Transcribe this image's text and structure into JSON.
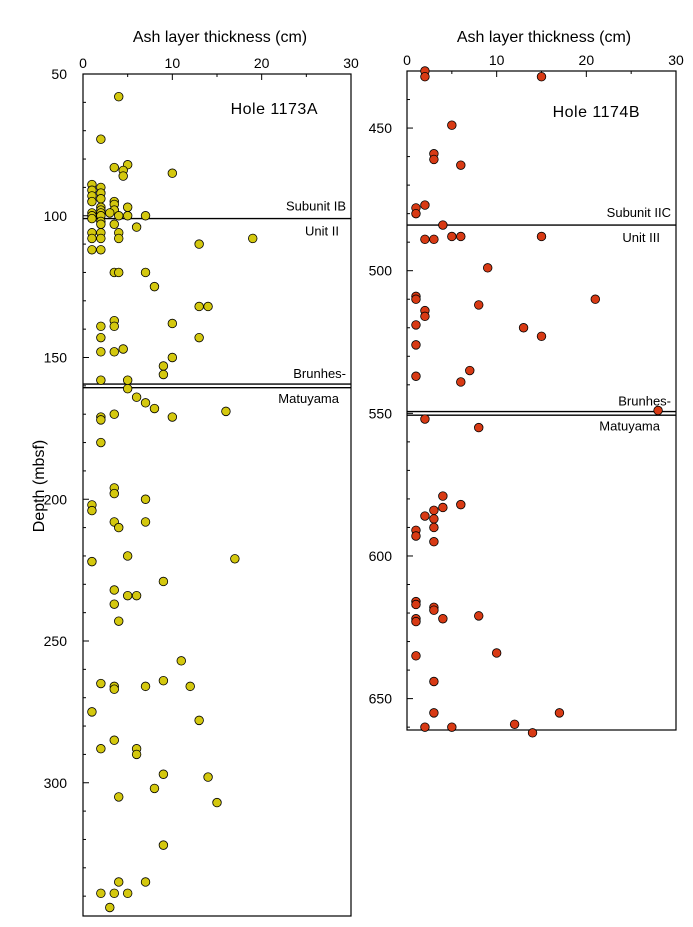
{
  "chart_data": [
    {
      "type": "scatter",
      "xlabel": "Ash layer thickness (cm)",
      "ylabel": "Depth (mbsf)",
      "xlim": [
        0,
        30
      ],
      "ylim": [
        50,
        347
      ],
      "y_inverted": true,
      "x_axis_position": "top",
      "xticks": [
        "0",
        "10",
        "20",
        "30"
      ],
      "yticks": [
        "50",
        "100",
        "150",
        "200",
        "250",
        "300"
      ],
      "ytick_values": [
        50,
        100,
        150,
        200,
        250,
        300
      ],
      "panel_label": "Hole 1173A",
      "marker_color": "#d4c80e",
      "boundaries": [
        {
          "depth": 101,
          "label_above": "Subunit IB",
          "label_below": "Unit II",
          "double": false
        },
        {
          "depth": 160,
          "label_above": "Brunhes-",
          "label_below": "Matuyama",
          "double": true
        }
      ],
      "points": [
        [
          4,
          58
        ],
        [
          2,
          73
        ],
        [
          3.5,
          83
        ],
        [
          5,
          82
        ],
        [
          4.5,
          84
        ],
        [
          4.5,
          86
        ],
        [
          10,
          85
        ],
        [
          1,
          89
        ],
        [
          2,
          90
        ],
        [
          1,
          91
        ],
        [
          2,
          92
        ],
        [
          1,
          93
        ],
        [
          2,
          94
        ],
        [
          1,
          95
        ],
        [
          3.5,
          95
        ],
        [
          3.5,
          96
        ],
        [
          2,
          97
        ],
        [
          5,
          97
        ],
        [
          2,
          98
        ],
        [
          3.5,
          98
        ],
        [
          1,
          99
        ],
        [
          2,
          99
        ],
        [
          3,
          99
        ],
        [
          1,
          100
        ],
        [
          2,
          100
        ],
        [
          4,
          100
        ],
        [
          5,
          100
        ],
        [
          7,
          100
        ],
        [
          1,
          101
        ],
        [
          2,
          102
        ],
        [
          2,
          103
        ],
        [
          3.5,
          103
        ],
        [
          6,
          104
        ],
        [
          1,
          106
        ],
        [
          2,
          106
        ],
        [
          4,
          106
        ],
        [
          2,
          108
        ],
        [
          4,
          108
        ],
        [
          1,
          108
        ],
        [
          19,
          108
        ],
        [
          13,
          110
        ],
        [
          1,
          112
        ],
        [
          2,
          112
        ],
        [
          3.5,
          120
        ],
        [
          4,
          120
        ],
        [
          7,
          120
        ],
        [
          8,
          125
        ],
        [
          13,
          132
        ],
        [
          14,
          132
        ],
        [
          3.5,
          137
        ],
        [
          10,
          138
        ],
        [
          2,
          139
        ],
        [
          3.5,
          139
        ],
        [
          2,
          143
        ],
        [
          13,
          143
        ],
        [
          3.5,
          148
        ],
        [
          4.5,
          147
        ],
        [
          2,
          148
        ],
        [
          10,
          150
        ],
        [
          9,
          153
        ],
        [
          9,
          156
        ],
        [
          5,
          158
        ],
        [
          2,
          158
        ],
        [
          5,
          161
        ],
        [
          6,
          164
        ],
        [
          7,
          166
        ],
        [
          8,
          168
        ],
        [
          16,
          169
        ],
        [
          3.5,
          170
        ],
        [
          2,
          171
        ],
        [
          10,
          171
        ],
        [
          2,
          172
        ],
        [
          2,
          180
        ],
        [
          3.5,
          196
        ],
        [
          3.5,
          198
        ],
        [
          7,
          200
        ],
        [
          1,
          202
        ],
        [
          1,
          204
        ],
        [
          3.5,
          208
        ],
        [
          7,
          208
        ],
        [
          4,
          210
        ],
        [
          5,
          220
        ],
        [
          17,
          221
        ],
        [
          1,
          222
        ],
        [
          9,
          229
        ],
        [
          3.5,
          232
        ],
        [
          5,
          234
        ],
        [
          6,
          234
        ],
        [
          3.5,
          237
        ],
        [
          4,
          243
        ],
        [
          11,
          257
        ],
        [
          9,
          264
        ],
        [
          2,
          265
        ],
        [
          3.5,
          266
        ],
        [
          3.5,
          267
        ],
        [
          7,
          266
        ],
        [
          12,
          266
        ],
        [
          1,
          275
        ],
        [
          13,
          278
        ],
        [
          3.5,
          285
        ],
        [
          2,
          288
        ],
        [
          6,
          288
        ],
        [
          6,
          290
        ],
        [
          9,
          297
        ],
        [
          14,
          298
        ],
        [
          8,
          302
        ],
        [
          4,
          305
        ],
        [
          15,
          307
        ],
        [
          9,
          322
        ],
        [
          4,
          335
        ],
        [
          7,
          335
        ],
        [
          2,
          339
        ],
        [
          3.5,
          339
        ],
        [
          5,
          339
        ],
        [
          3,
          344
        ]
      ]
    },
    {
      "type": "scatter",
      "xlabel": "Ash layer thickness (cm)",
      "ylabel": "",
      "xlim": [
        0,
        30
      ],
      "ylim": [
        430,
        661
      ],
      "y_inverted": true,
      "x_axis_position": "top",
      "xticks": [
        "0",
        "10",
        "20",
        "30"
      ],
      "yticks": [
        "450",
        "500",
        "550",
        "600",
        "650"
      ],
      "ytick_values": [
        450,
        500,
        550,
        600,
        650
      ],
      "panel_label": "Hole 1174B",
      "marker_color": "#d83a14",
      "boundaries": [
        {
          "depth": 484,
          "label_above": "Subunit IIC",
          "label_below": "Unit III",
          "double": false
        },
        {
          "depth": 550,
          "label_above": "Brunhes-",
          "label_below": "Matuyama",
          "double": true
        }
      ],
      "points": [
        [
          2,
          430
        ],
        [
          2,
          432
        ],
        [
          15,
          432
        ],
        [
          5,
          449
        ],
        [
          3,
          459
        ],
        [
          3,
          461
        ],
        [
          6,
          463
        ],
        [
          1,
          478
        ],
        [
          1,
          480
        ],
        [
          2,
          477
        ],
        [
          4,
          484
        ],
        [
          2,
          489
        ],
        [
          3,
          489
        ],
        [
          5,
          488
        ],
        [
          6,
          488
        ],
        [
          15,
          488
        ],
        [
          9,
          499
        ],
        [
          1,
          509
        ],
        [
          1,
          510
        ],
        [
          21,
          510
        ],
        [
          8,
          512
        ],
        [
          2,
          514
        ],
        [
          2,
          516
        ],
        [
          1,
          519
        ],
        [
          13,
          520
        ],
        [
          15,
          523
        ],
        [
          1,
          526
        ],
        [
          7,
          535
        ],
        [
          1,
          537
        ],
        [
          6,
          539
        ],
        [
          28,
          549
        ],
        [
          2,
          552
        ],
        [
          8,
          555
        ],
        [
          4,
          579
        ],
        [
          4,
          583
        ],
        [
          6,
          582
        ],
        [
          3,
          584
        ],
        [
          3,
          587
        ],
        [
          2,
          586
        ],
        [
          3,
          590
        ],
        [
          1,
          591
        ],
        [
          1,
          593
        ],
        [
          3,
          595
        ],
        [
          1,
          616
        ],
        [
          1,
          617
        ],
        [
          3,
          618
        ],
        [
          3,
          619
        ],
        [
          8,
          621
        ],
        [
          1,
          622
        ],
        [
          1,
          623
        ],
        [
          4,
          622
        ],
        [
          1,
          635
        ],
        [
          10,
          634
        ],
        [
          3,
          644
        ],
        [
          3,
          655
        ],
        [
          17,
          655
        ],
        [
          12,
          659
        ],
        [
          2,
          660
        ],
        [
          5,
          660
        ],
        [
          14,
          662
        ]
      ]
    }
  ]
}
